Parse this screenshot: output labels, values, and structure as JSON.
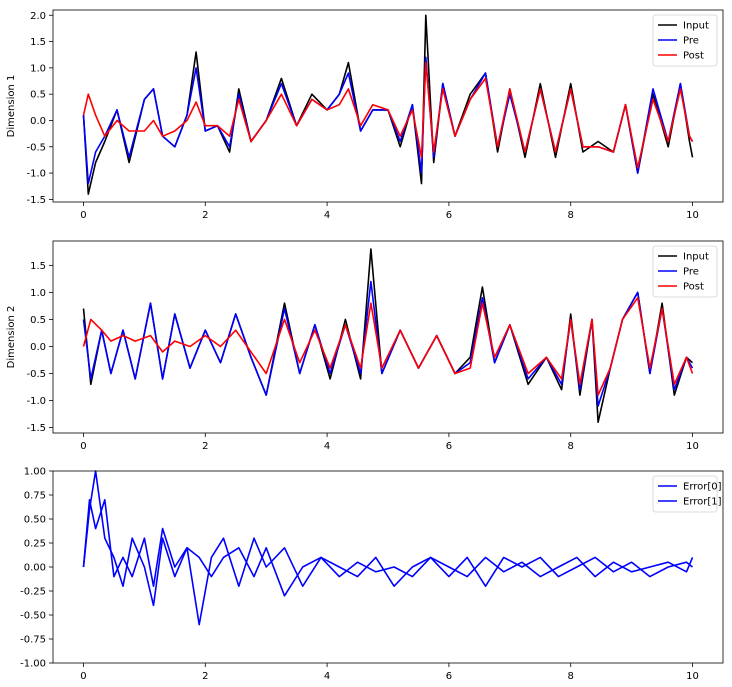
{
  "chart_data": [
    {
      "type": "line",
      "title": "",
      "xlabel": "",
      "ylabel": "Dimension 1",
      "xlim": [
        -0.5,
        10.5
      ],
      "ylim": [
        -1.55,
        2.1
      ],
      "xticks": [
        "0",
        "2",
        "4",
        "6",
        "8",
        "10"
      ],
      "yticks": [
        "-1.5",
        "-1.0",
        "-0.5",
        "0.0",
        "0.5",
        "1.0",
        "1.5",
        "2.0"
      ],
      "legend_position": "top-right",
      "series": [
        {
          "name": "Input",
          "color": "#000000",
          "x": [
            0,
            0.08,
            0.2,
            0.35,
            0.55,
            0.75,
            1.0,
            1.15,
            1.3,
            1.5,
            1.7,
            1.85,
            2.0,
            2.2,
            2.4,
            2.55,
            2.75,
            3.0,
            3.25,
            3.5,
            3.75,
            4.0,
            4.2,
            4.35,
            4.55,
            4.75,
            5.0,
            5.2,
            5.4,
            5.55,
            5.62,
            5.75,
            5.9,
            6.1,
            6.35,
            6.6,
            6.8,
            7.0,
            7.25,
            7.5,
            7.75,
            8.0,
            8.2,
            8.45,
            8.7,
            8.9,
            9.1,
            9.35,
            9.6,
            9.8,
            9.95,
            10.0
          ],
          "values": [
            0.1,
            -1.4,
            -0.8,
            -0.4,
            0.2,
            -0.8,
            0.4,
            0.6,
            -0.3,
            -0.5,
            0.1,
            1.3,
            -0.2,
            -0.1,
            -0.6,
            0.6,
            -0.4,
            0.0,
            0.8,
            -0.1,
            0.5,
            0.2,
            0.5,
            1.1,
            -0.2,
            0.2,
            0.2,
            -0.5,
            0.3,
            -1.2,
            2.0,
            -0.8,
            0.7,
            -0.3,
            0.5,
            0.9,
            -0.6,
            0.6,
            -0.7,
            0.7,
            -0.7,
            0.7,
            -0.6,
            -0.4,
            -0.6,
            0.3,
            -1.0,
            0.5,
            -0.5,
            0.7,
            -0.4,
            -0.7
          ]
        },
        {
          "name": "Pre",
          "color": "#0000ff",
          "x": [
            0,
            0.08,
            0.2,
            0.35,
            0.55,
            0.75,
            1.0,
            1.15,
            1.3,
            1.5,
            1.7,
            1.85,
            2.0,
            2.2,
            2.4,
            2.55,
            2.75,
            3.0,
            3.25,
            3.5,
            3.75,
            4.0,
            4.2,
            4.35,
            4.55,
            4.75,
            5.0,
            5.2,
            5.4,
            5.55,
            5.62,
            5.75,
            5.9,
            6.1,
            6.35,
            6.6,
            6.8,
            7.0,
            7.25,
            7.5,
            7.75,
            8.0,
            8.2,
            8.45,
            8.7,
            8.9,
            9.1,
            9.35,
            9.6,
            9.8,
            9.95,
            10.0
          ],
          "values": [
            0.1,
            -1.2,
            -0.6,
            -0.3,
            0.2,
            -0.7,
            0.4,
            0.6,
            -0.3,
            -0.5,
            0.1,
            1.0,
            -0.2,
            -0.1,
            -0.5,
            0.5,
            -0.4,
            0.0,
            0.7,
            -0.1,
            0.4,
            0.2,
            0.5,
            0.9,
            -0.2,
            0.2,
            0.2,
            -0.4,
            0.3,
            -1.0,
            1.2,
            -0.7,
            0.7,
            -0.3,
            0.4,
            0.9,
            -0.5,
            0.5,
            -0.6,
            0.6,
            -0.6,
            0.6,
            -0.5,
            -0.5,
            -0.6,
            0.3,
            -1.0,
            0.6,
            -0.4,
            0.7,
            -0.3,
            -0.4
          ]
        },
        {
          "name": "Post",
          "color": "#ff0000",
          "x": [
            0,
            0.08,
            0.2,
            0.35,
            0.55,
            0.75,
            1.0,
            1.15,
            1.3,
            1.5,
            1.7,
            1.85,
            2.0,
            2.2,
            2.4,
            2.55,
            2.75,
            3.0,
            3.25,
            3.5,
            3.75,
            4.0,
            4.2,
            4.35,
            4.55,
            4.75,
            5.0,
            5.2,
            5.4,
            5.55,
            5.62,
            5.75,
            5.9,
            6.1,
            6.35,
            6.6,
            6.8,
            7.0,
            7.25,
            7.5,
            7.75,
            8.0,
            8.2,
            8.45,
            8.7,
            8.9,
            9.1,
            9.35,
            9.6,
            9.8,
            9.95,
            10.0
          ],
          "values": [
            0.1,
            0.5,
            0.1,
            -0.3,
            0.0,
            -0.2,
            -0.2,
            0.0,
            -0.3,
            -0.2,
            0.0,
            0.35,
            -0.1,
            -0.1,
            -0.3,
            0.4,
            -0.4,
            0.0,
            0.5,
            -0.1,
            0.4,
            0.2,
            0.3,
            0.6,
            -0.1,
            0.3,
            0.2,
            -0.3,
            0.2,
            -0.7,
            1.1,
            -0.6,
            0.6,
            -0.3,
            0.4,
            0.8,
            -0.5,
            0.6,
            -0.6,
            0.6,
            -0.6,
            0.6,
            -0.5,
            -0.5,
            -0.6,
            0.3,
            -0.9,
            0.4,
            -0.4,
            0.6,
            -0.3,
            -0.4
          ]
        }
      ]
    },
    {
      "type": "line",
      "title": "",
      "xlabel": "",
      "ylabel": "Dimension 2",
      "xlim": [
        -0.5,
        10.5
      ],
      "ylim": [
        -1.6,
        1.95
      ],
      "xticks": [
        "0",
        "2",
        "4",
        "6",
        "8",
        "10"
      ],
      "yticks": [
        "-1.5",
        "-1.0",
        "-0.5",
        "0.0",
        "0.5",
        "1.0",
        "1.5"
      ],
      "legend_position": "top-right",
      "series": [
        {
          "name": "Input",
          "color": "#000000",
          "x": [
            0,
            0.12,
            0.3,
            0.45,
            0.65,
            0.85,
            1.1,
            1.3,
            1.5,
            1.75,
            2.0,
            2.25,
            2.5,
            2.75,
            3.0,
            3.3,
            3.55,
            3.8,
            4.05,
            4.3,
            4.55,
            4.72,
            4.9,
            5.2,
            5.5,
            5.8,
            6.1,
            6.35,
            6.55,
            6.75,
            7.0,
            7.3,
            7.6,
            7.85,
            8.0,
            8.15,
            8.35,
            8.45,
            8.65,
            8.85,
            9.1,
            9.3,
            9.5,
            9.7,
            9.9,
            10.0
          ],
          "values": [
            0.7,
            -0.7,
            0.3,
            -0.5,
            0.3,
            -0.6,
            0.8,
            -0.6,
            0.6,
            -0.4,
            0.3,
            -0.3,
            0.6,
            -0.2,
            -0.9,
            0.8,
            -0.5,
            0.4,
            -0.6,
            0.5,
            -0.6,
            1.8,
            -0.5,
            0.3,
            -0.4,
            0.2,
            -0.5,
            -0.2,
            1.1,
            -0.3,
            0.4,
            -0.7,
            -0.2,
            -0.8,
            0.6,
            -0.9,
            0.5,
            -1.4,
            -0.4,
            0.5,
            1.0,
            -0.5,
            0.8,
            -0.9,
            -0.2,
            -0.3
          ]
        },
        {
          "name": "Pre",
          "color": "#0000ff",
          "x": [
            0,
            0.12,
            0.3,
            0.45,
            0.65,
            0.85,
            1.1,
            1.3,
            1.5,
            1.75,
            2.0,
            2.25,
            2.5,
            2.75,
            3.0,
            3.3,
            3.55,
            3.8,
            4.05,
            4.3,
            4.55,
            4.72,
            4.9,
            5.2,
            5.5,
            5.8,
            6.1,
            6.35,
            6.55,
            6.75,
            7.0,
            7.3,
            7.6,
            7.85,
            8.0,
            8.15,
            8.35,
            8.45,
            8.65,
            8.85,
            9.1,
            9.3,
            9.5,
            9.7,
            9.9,
            10.0
          ],
          "values": [
            0.5,
            -0.6,
            0.3,
            -0.5,
            0.3,
            -0.6,
            0.8,
            -0.6,
            0.6,
            -0.4,
            0.3,
            -0.3,
            0.6,
            -0.2,
            -0.9,
            0.7,
            -0.5,
            0.4,
            -0.5,
            0.4,
            -0.5,
            1.2,
            -0.5,
            0.3,
            -0.4,
            0.2,
            -0.5,
            -0.3,
            0.9,
            -0.3,
            0.4,
            -0.6,
            -0.2,
            -0.7,
            0.5,
            -0.8,
            0.5,
            -1.1,
            -0.4,
            0.5,
            1.0,
            -0.5,
            0.7,
            -0.8,
            -0.2,
            -0.4
          ]
        },
        {
          "name": "Post",
          "color": "#ff0000",
          "x": [
            0,
            0.12,
            0.3,
            0.45,
            0.65,
            0.85,
            1.1,
            1.3,
            1.5,
            1.75,
            2.0,
            2.25,
            2.5,
            2.75,
            3.0,
            3.3,
            3.55,
            3.8,
            4.05,
            4.3,
            4.55,
            4.72,
            4.9,
            5.2,
            5.5,
            5.8,
            6.1,
            6.35,
            6.55,
            6.75,
            7.0,
            7.3,
            7.6,
            7.85,
            8.0,
            8.15,
            8.35,
            8.45,
            8.65,
            8.85,
            9.1,
            9.3,
            9.5,
            9.7,
            9.9,
            10.0
          ],
          "values": [
            0.0,
            0.5,
            0.3,
            0.1,
            0.2,
            0.1,
            0.2,
            -0.1,
            0.1,
            0.0,
            0.2,
            0.0,
            0.3,
            -0.1,
            -0.5,
            0.5,
            -0.3,
            0.3,
            -0.4,
            0.4,
            -0.4,
            0.8,
            -0.4,
            0.3,
            -0.4,
            0.2,
            -0.5,
            -0.4,
            0.8,
            -0.2,
            0.4,
            -0.5,
            -0.2,
            -0.6,
            0.5,
            -0.7,
            0.5,
            -0.9,
            -0.4,
            0.5,
            0.9,
            -0.4,
            0.7,
            -0.7,
            -0.2,
            -0.5
          ]
        }
      ]
    },
    {
      "type": "line",
      "title": "",
      "xlabel": "",
      "ylabel": "",
      "xlim": [
        -0.5,
        10.5
      ],
      "ylim": [
        -1.0,
        1.0
      ],
      "xticks": [
        "0",
        "2",
        "4",
        "6",
        "8",
        "10"
      ],
      "yticks": [
        "-1.00",
        "-0.75",
        "-0.50",
        "-0.25",
        "0.00",
        "0.25",
        "0.50",
        "0.75",
        "1.00"
      ],
      "legend_position": "top-right",
      "series": [
        {
          "name": "Error[0]",
          "color": "#0000ff",
          "x": [
            0,
            0.1,
            0.2,
            0.35,
            0.5,
            0.65,
            0.8,
            1.0,
            1.15,
            1.3,
            1.5,
            1.7,
            1.9,
            2.1,
            2.3,
            2.55,
            2.8,
            3.0,
            3.3,
            3.6,
            3.9,
            4.2,
            4.5,
            4.8,
            5.1,
            5.4,
            5.7,
            6.0,
            6.3,
            6.6,
            6.9,
            7.2,
            7.5,
            7.8,
            8.1,
            8.4,
            8.7,
            9.0,
            9.3,
            9.6,
            9.9,
            10.0
          ],
          "values": [
            0.0,
            0.6,
            1.0,
            0.3,
            0.1,
            -0.2,
            0.3,
            0.0,
            -0.4,
            0.3,
            -0.1,
            0.2,
            -0.6,
            0.1,
            0.3,
            -0.2,
            0.3,
            0.0,
            0.2,
            -0.2,
            0.1,
            -0.1,
            0.05,
            -0.05,
            0.0,
            -0.1,
            0.1,
            0.0,
            -0.1,
            0.1,
            -0.05,
            0.05,
            -0.1,
            0.0,
            0.1,
            -0.1,
            0.05,
            -0.05,
            0.0,
            0.05,
            -0.05,
            0.1
          ]
        },
        {
          "name": "Error[1]",
          "color": "#0000ff",
          "x": [
            0,
            0.1,
            0.2,
            0.35,
            0.5,
            0.65,
            0.8,
            1.0,
            1.15,
            1.3,
            1.5,
            1.7,
            1.9,
            2.1,
            2.3,
            2.55,
            2.8,
            3.0,
            3.3,
            3.6,
            3.9,
            4.2,
            4.5,
            4.8,
            5.1,
            5.4,
            5.7,
            6.0,
            6.3,
            6.6,
            6.9,
            7.2,
            7.5,
            7.8,
            8.1,
            8.4,
            8.7,
            9.0,
            9.3,
            9.6,
            9.9,
            10.0
          ],
          "values": [
            0.0,
            0.7,
            0.4,
            0.7,
            -0.1,
            0.1,
            -0.1,
            0.3,
            -0.2,
            0.4,
            0.0,
            0.2,
            0.1,
            -0.1,
            0.1,
            0.2,
            -0.1,
            0.2,
            -0.3,
            0.0,
            0.1,
            0.0,
            -0.1,
            0.1,
            -0.2,
            0.0,
            0.1,
            -0.1,
            0.1,
            -0.2,
            0.1,
            0.0,
            0.1,
            -0.1,
            0.0,
            0.1,
            -0.05,
            0.05,
            -0.1,
            0.0,
            0.05,
            0.0
          ]
        }
      ]
    }
  ]
}
